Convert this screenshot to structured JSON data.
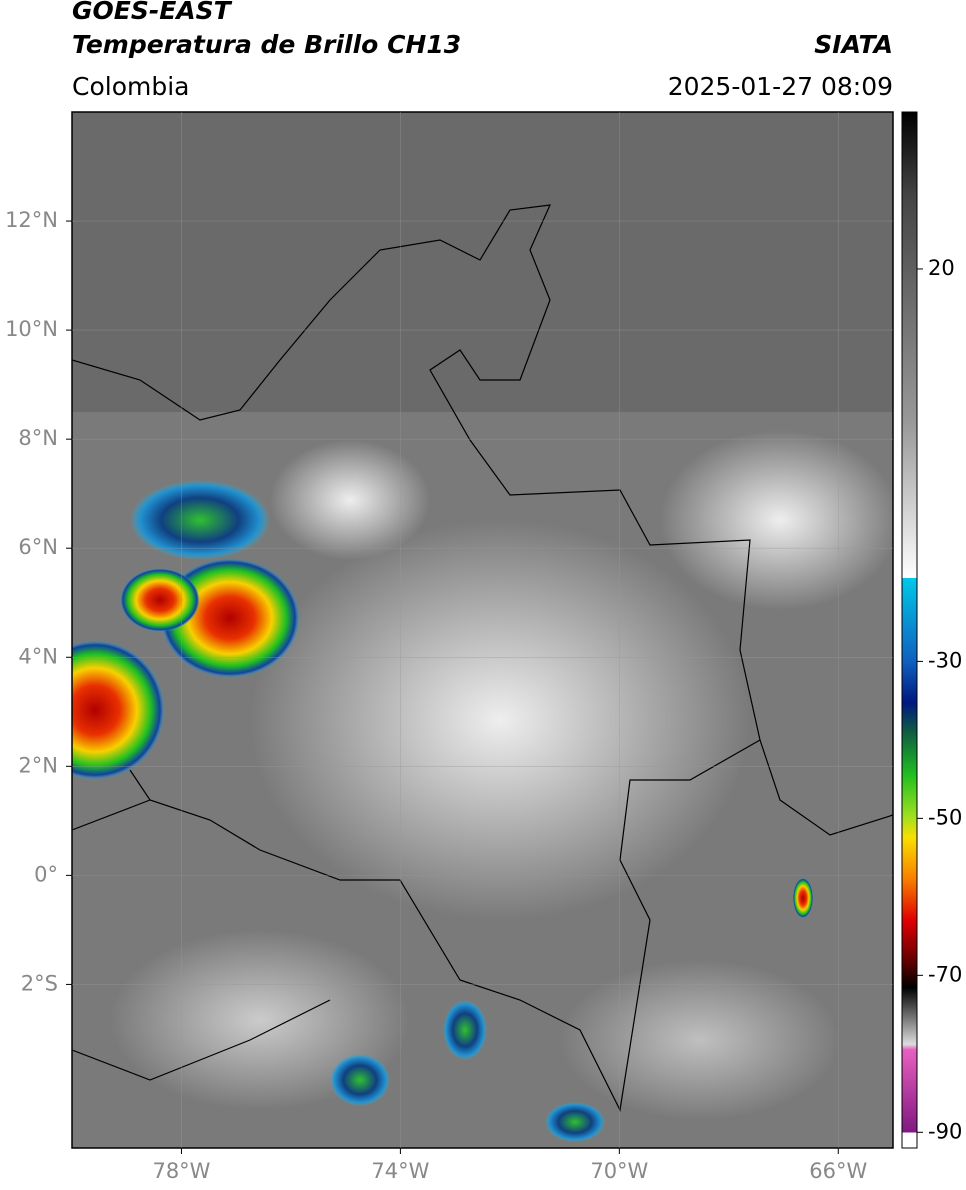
{
  "header": {
    "title_line1": "GOES-EAST",
    "title_line2": "Temperatura de Brillo CH13",
    "region": "Colombia",
    "source": "SIATA",
    "datetime": "2025-01-27 08:09"
  },
  "map": {
    "xlim": [
      -80,
      -65
    ],
    "ylim": [
      -5,
      14
    ],
    "xticks": [
      {
        "value": -78,
        "label": "78°W"
      },
      {
        "value": -74,
        "label": "74°W"
      },
      {
        "value": -70,
        "label": "70°W"
      },
      {
        "value": -66,
        "label": "66°W"
      }
    ],
    "yticks": [
      {
        "value": 12,
        "label": "12°N"
      },
      {
        "value": 10,
        "label": "10°N"
      },
      {
        "value": 8,
        "label": "8°N"
      },
      {
        "value": 6,
        "label": "6°N"
      },
      {
        "value": 4,
        "label": "4°N"
      },
      {
        "value": 2,
        "label": "2°N"
      },
      {
        "value": 0,
        "label": "0°"
      },
      {
        "value": -2,
        "label": "2°S"
      }
    ],
    "grid": true
  },
  "colorbar": {
    "lim": [
      -92,
      40
    ],
    "ticks": [
      20,
      -30,
      -50,
      -70,
      -90
    ]
  }
}
